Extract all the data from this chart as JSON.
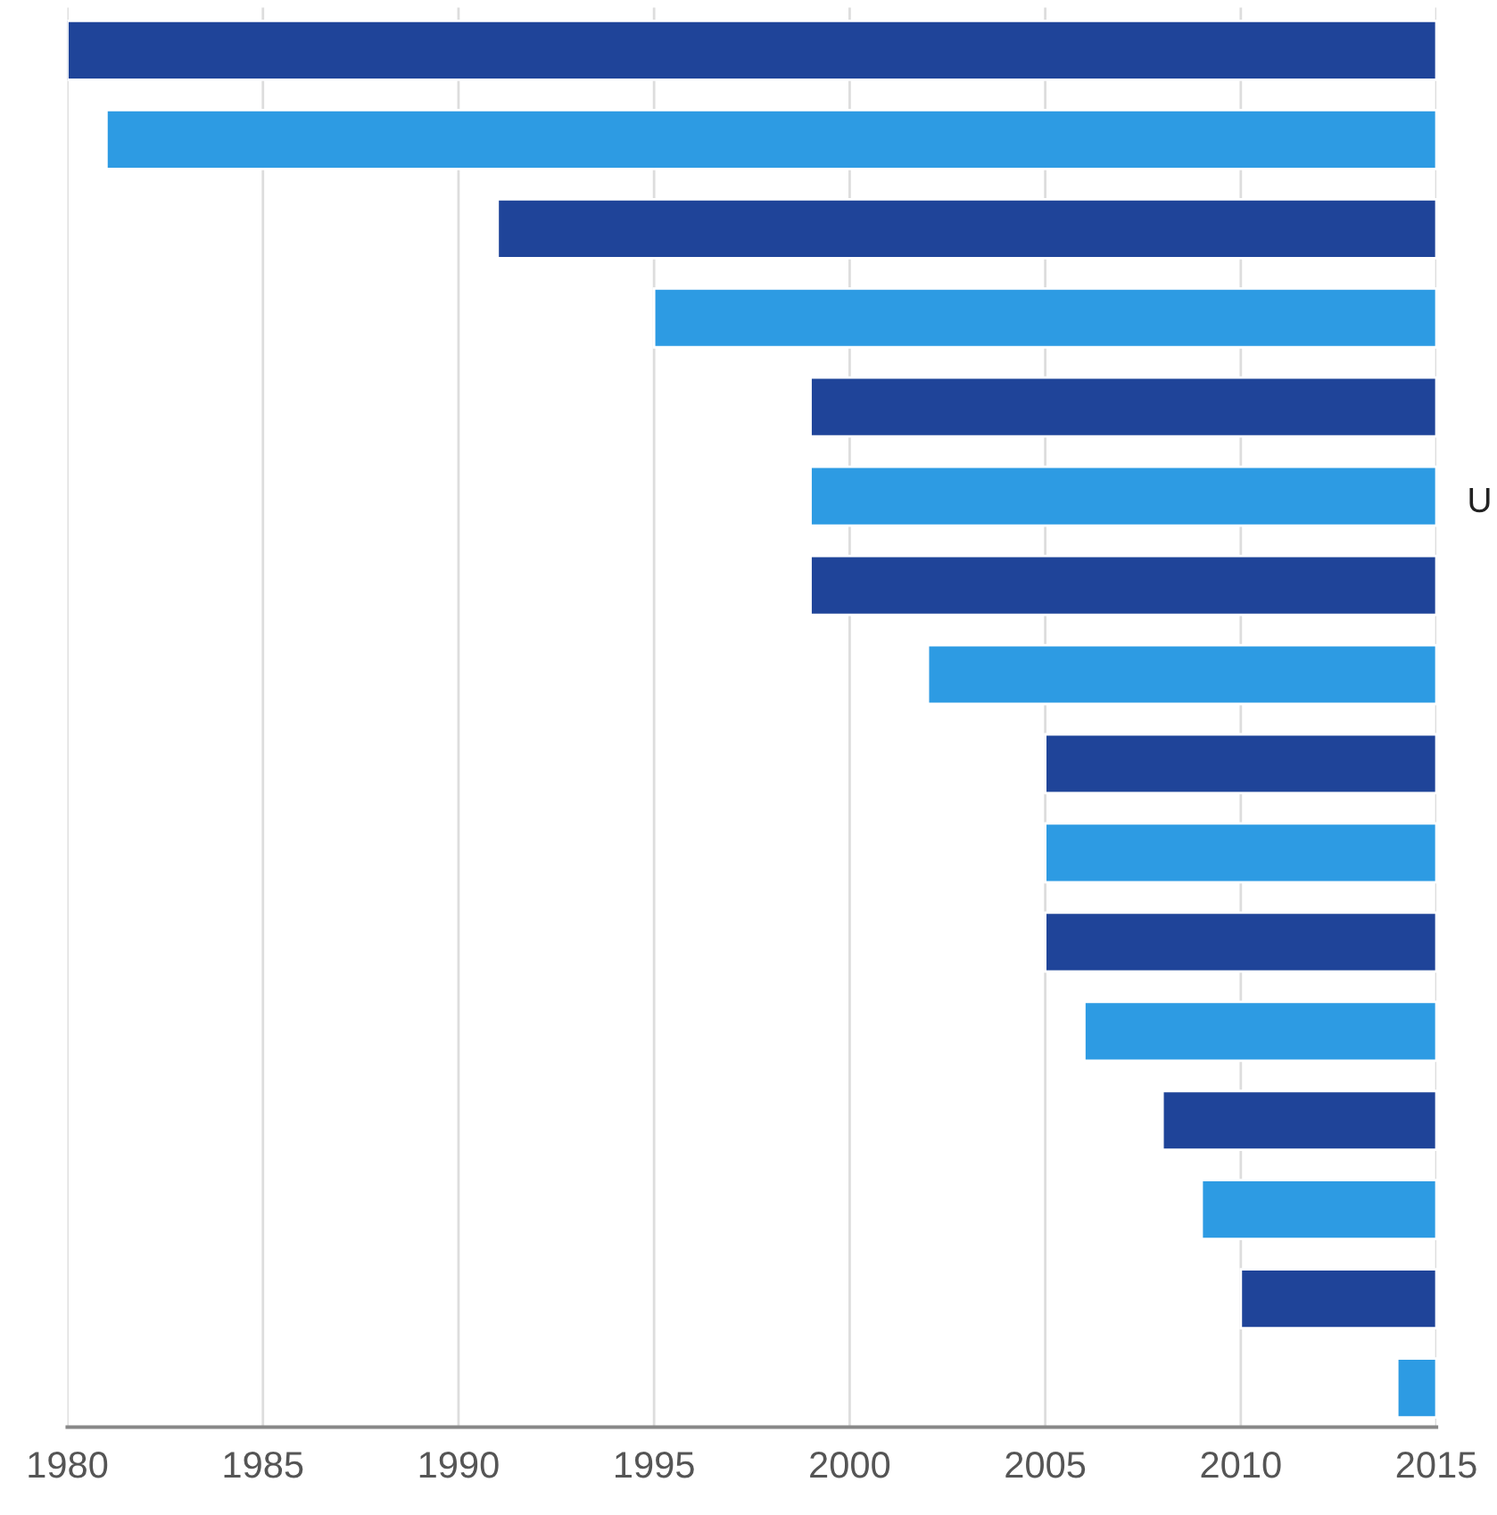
{
  "chart_data": {
    "type": "bar",
    "orientation": "horizontal",
    "categories": [
      null,
      null,
      null,
      null,
      null,
      null,
      null,
      null,
      null,
      null,
      null,
      null,
      null,
      null,
      null,
      null
    ],
    "base": [
      1980,
      1981,
      1991,
      1995,
      1999,
      1999,
      1999,
      2002,
      2005,
      2005,
      2005,
      2006,
      2008,
      2009,
      2010,
      2014
    ],
    "values": [
      35,
      34,
      24,
      20,
      16,
      16,
      16,
      13,
      10,
      10,
      10,
      9,
      7,
      6,
      5,
      1
    ],
    "colors": [
      "#1f4499",
      "#2d9be3",
      "#1f4499",
      "#2d9be3",
      "#1f4499",
      "#2d9be3",
      "#1f4499",
      "#2d9be3",
      "#1f4499",
      "#2d9be3",
      "#1f4499",
      "#2d9be3",
      "#1f4499",
      "#2d9be3",
      "#1f4499",
      "#2d9be3"
    ],
    "xlim": [
      1980,
      2015
    ],
    "xticks": [
      1980,
      1985,
      1990,
      1995,
      2000,
      2005,
      2010,
      2015
    ],
    "grid": "x",
    "legend": false,
    "annotations": [
      "U"
    ]
  }
}
